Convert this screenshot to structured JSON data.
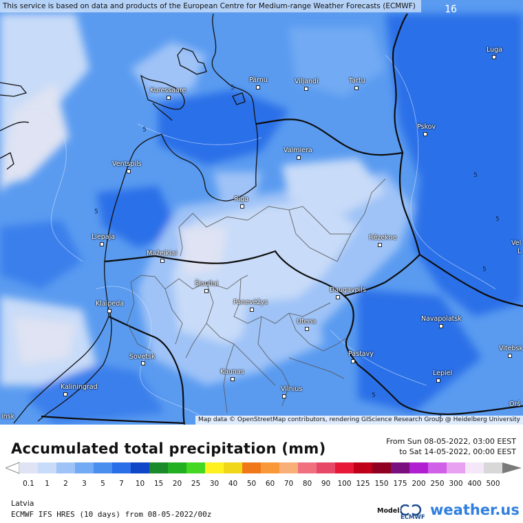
{
  "map": {
    "attribution_top": "This service is based on data and products of the European Centre for Medium-range Weather Forecasts (ECMWF)",
    "attribution_bottom": "Map data © OpenStreetMap contributors, rendering GIScience Research Group @ Heidelberg University",
    "time_badge": "16",
    "colors": {
      "heavy": "#2a6fe8",
      "medium": "#5a9bf0",
      "light": "#9fc3f7",
      "verylight": "#c8dbf8",
      "trace": "#dfe3f3"
    },
    "cities": [
      {
        "name": "Luga"
      },
      {
        "name": "Pärnu"
      },
      {
        "name": "Viljandi"
      },
      {
        "name": "Tartu"
      },
      {
        "name": "Kuressaare"
      },
      {
        "name": "Pskov"
      },
      {
        "name": "Valmiera"
      },
      {
        "name": "Ventspils"
      },
      {
        "name": "Riga"
      },
      {
        "name": "Liepaja"
      },
      {
        "name": "Rēzekne"
      },
      {
        "name": "Mažeikiai"
      },
      {
        "name": "Šiauliai"
      },
      {
        "name": "Panevėžys"
      },
      {
        "name": "Daugavpils"
      },
      {
        "name": "Klaipeda"
      },
      {
        "name": "Navapolatsk"
      },
      {
        "name": "Utena"
      },
      {
        "name": "Vitebsk"
      },
      {
        "name": "Sovetsk"
      },
      {
        "name": "Pastavy"
      },
      {
        "name": "Kaunas"
      },
      {
        "name": "Lepiel"
      },
      {
        "name": "Kaliningrad"
      },
      {
        "name": "Vilnius"
      },
      {
        "name": "Orš"
      },
      {
        "name": "Vel"
      },
      {
        "name": "L"
      },
      {
        "name": "insk"
      }
    ],
    "isolines": [
      "5",
      "5",
      "5",
      "5",
      "5",
      "5",
      "5",
      "5"
    ]
  },
  "legend": {
    "title": "Accumulated total precipitation (mm)",
    "period_from": "From Sun 08-05-2022, 03:00 EEST",
    "period_to": "to Sat 14-05-2022, 00:00 EEST",
    "scale": [
      {
        "label": "0.1",
        "color": "#dfe3f3"
      },
      {
        "label": "1",
        "color": "#c8dbf8"
      },
      {
        "label": "2",
        "color": "#9fc3f7"
      },
      {
        "label": "3",
        "color": "#72aaf3"
      },
      {
        "label": "5",
        "color": "#4a8eee"
      },
      {
        "label": "7",
        "color": "#2a6fe8"
      },
      {
        "label": "10",
        "color": "#1046c8"
      },
      {
        "label": "15",
        "color": "#1a8a2a"
      },
      {
        "label": "20",
        "color": "#22b022"
      },
      {
        "label": "25",
        "color": "#44d822"
      },
      {
        "label": "30",
        "color": "#fff020"
      },
      {
        "label": "40",
        "color": "#f0d818"
      },
      {
        "label": "50",
        "color": "#f07818"
      },
      {
        "label": "60",
        "color": "#f89838"
      },
      {
        "label": "70",
        "color": "#f8b078"
      },
      {
        "label": "80",
        "color": "#f07080"
      },
      {
        "label": "90",
        "color": "#e84868"
      },
      {
        "label": "100",
        "color": "#e81838"
      },
      {
        "label": "125",
        "color": "#c00018"
      },
      {
        "label": "150",
        "color": "#900020"
      },
      {
        "label": "175",
        "color": "#7a1080"
      },
      {
        "label": "200",
        "color": "#b020d0"
      },
      {
        "label": "250",
        "color": "#d060e8"
      },
      {
        "label": "300",
        "color": "#e8a0f0"
      },
      {
        "label": "400",
        "color": "#f4e8f8"
      },
      {
        "label": "500",
        "color": "#d8d8d8"
      }
    ],
    "region": "Latvia",
    "model_run": "ECMWF IFS HRES (10 days) from 08-05-2022/00z",
    "model_label": "Model:",
    "model_name": "ECMWF",
    "brand": "weather.us"
  }
}
